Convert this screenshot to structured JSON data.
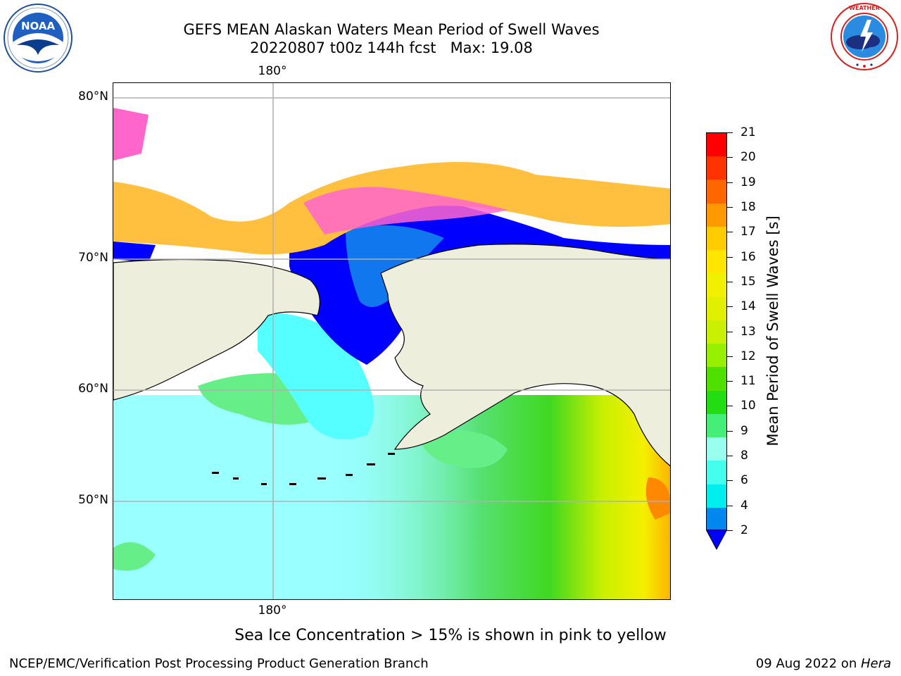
{
  "header": {
    "title_line1": "GEFS MEAN Alaskan Waters Mean Period of Swell Waves",
    "title_line2": "20220807 t00z 144h fcst   Max: 19.08"
  },
  "logos": {
    "left": {
      "name": "NOAA",
      "ring_text": "NATIONAL OCEANIC AND ATMOSPHERIC ADMINISTRATION · U.S. DEPARTMENT OF COMMERCE"
    },
    "right": {
      "name": "NATIONAL WEATHER SERVICE"
    }
  },
  "map": {
    "lon_label_top": "180°",
    "lon_label_bottom": "180°",
    "lat_labels": [
      "80°N",
      "70°N",
      "60°N",
      "50°N"
    ]
  },
  "colorbar": {
    "label": "Mean Period of Swell Waves [s]",
    "ticks": [
      "21",
      "20",
      "19",
      "18",
      "17",
      "16",
      "15",
      "14",
      "13",
      "12",
      "11",
      "10",
      "9",
      "8",
      "6",
      "4",
      "2"
    ],
    "colors": [
      "#fe0000",
      "#fe3300",
      "#fe6600",
      "#fe9900",
      "#fecc00",
      "#fee600",
      "#f0f000",
      "#e0f000",
      "#c8f000",
      "#96f000",
      "#50e000",
      "#22dd11",
      "#44ee77",
      "#99ffee",
      "#44ffee",
      "#00eeee",
      "#0088ee"
    ],
    "under_color": "#0000ff"
  },
  "annotation": "Sea Ice Concentration > 15% is shown in pink to yellow",
  "footer": {
    "left": "NCEP/EMC/Verification Post Processing Product Generation Branch",
    "right_prefix": "09 Aug 2022 on ",
    "right_host": "Hera"
  }
}
